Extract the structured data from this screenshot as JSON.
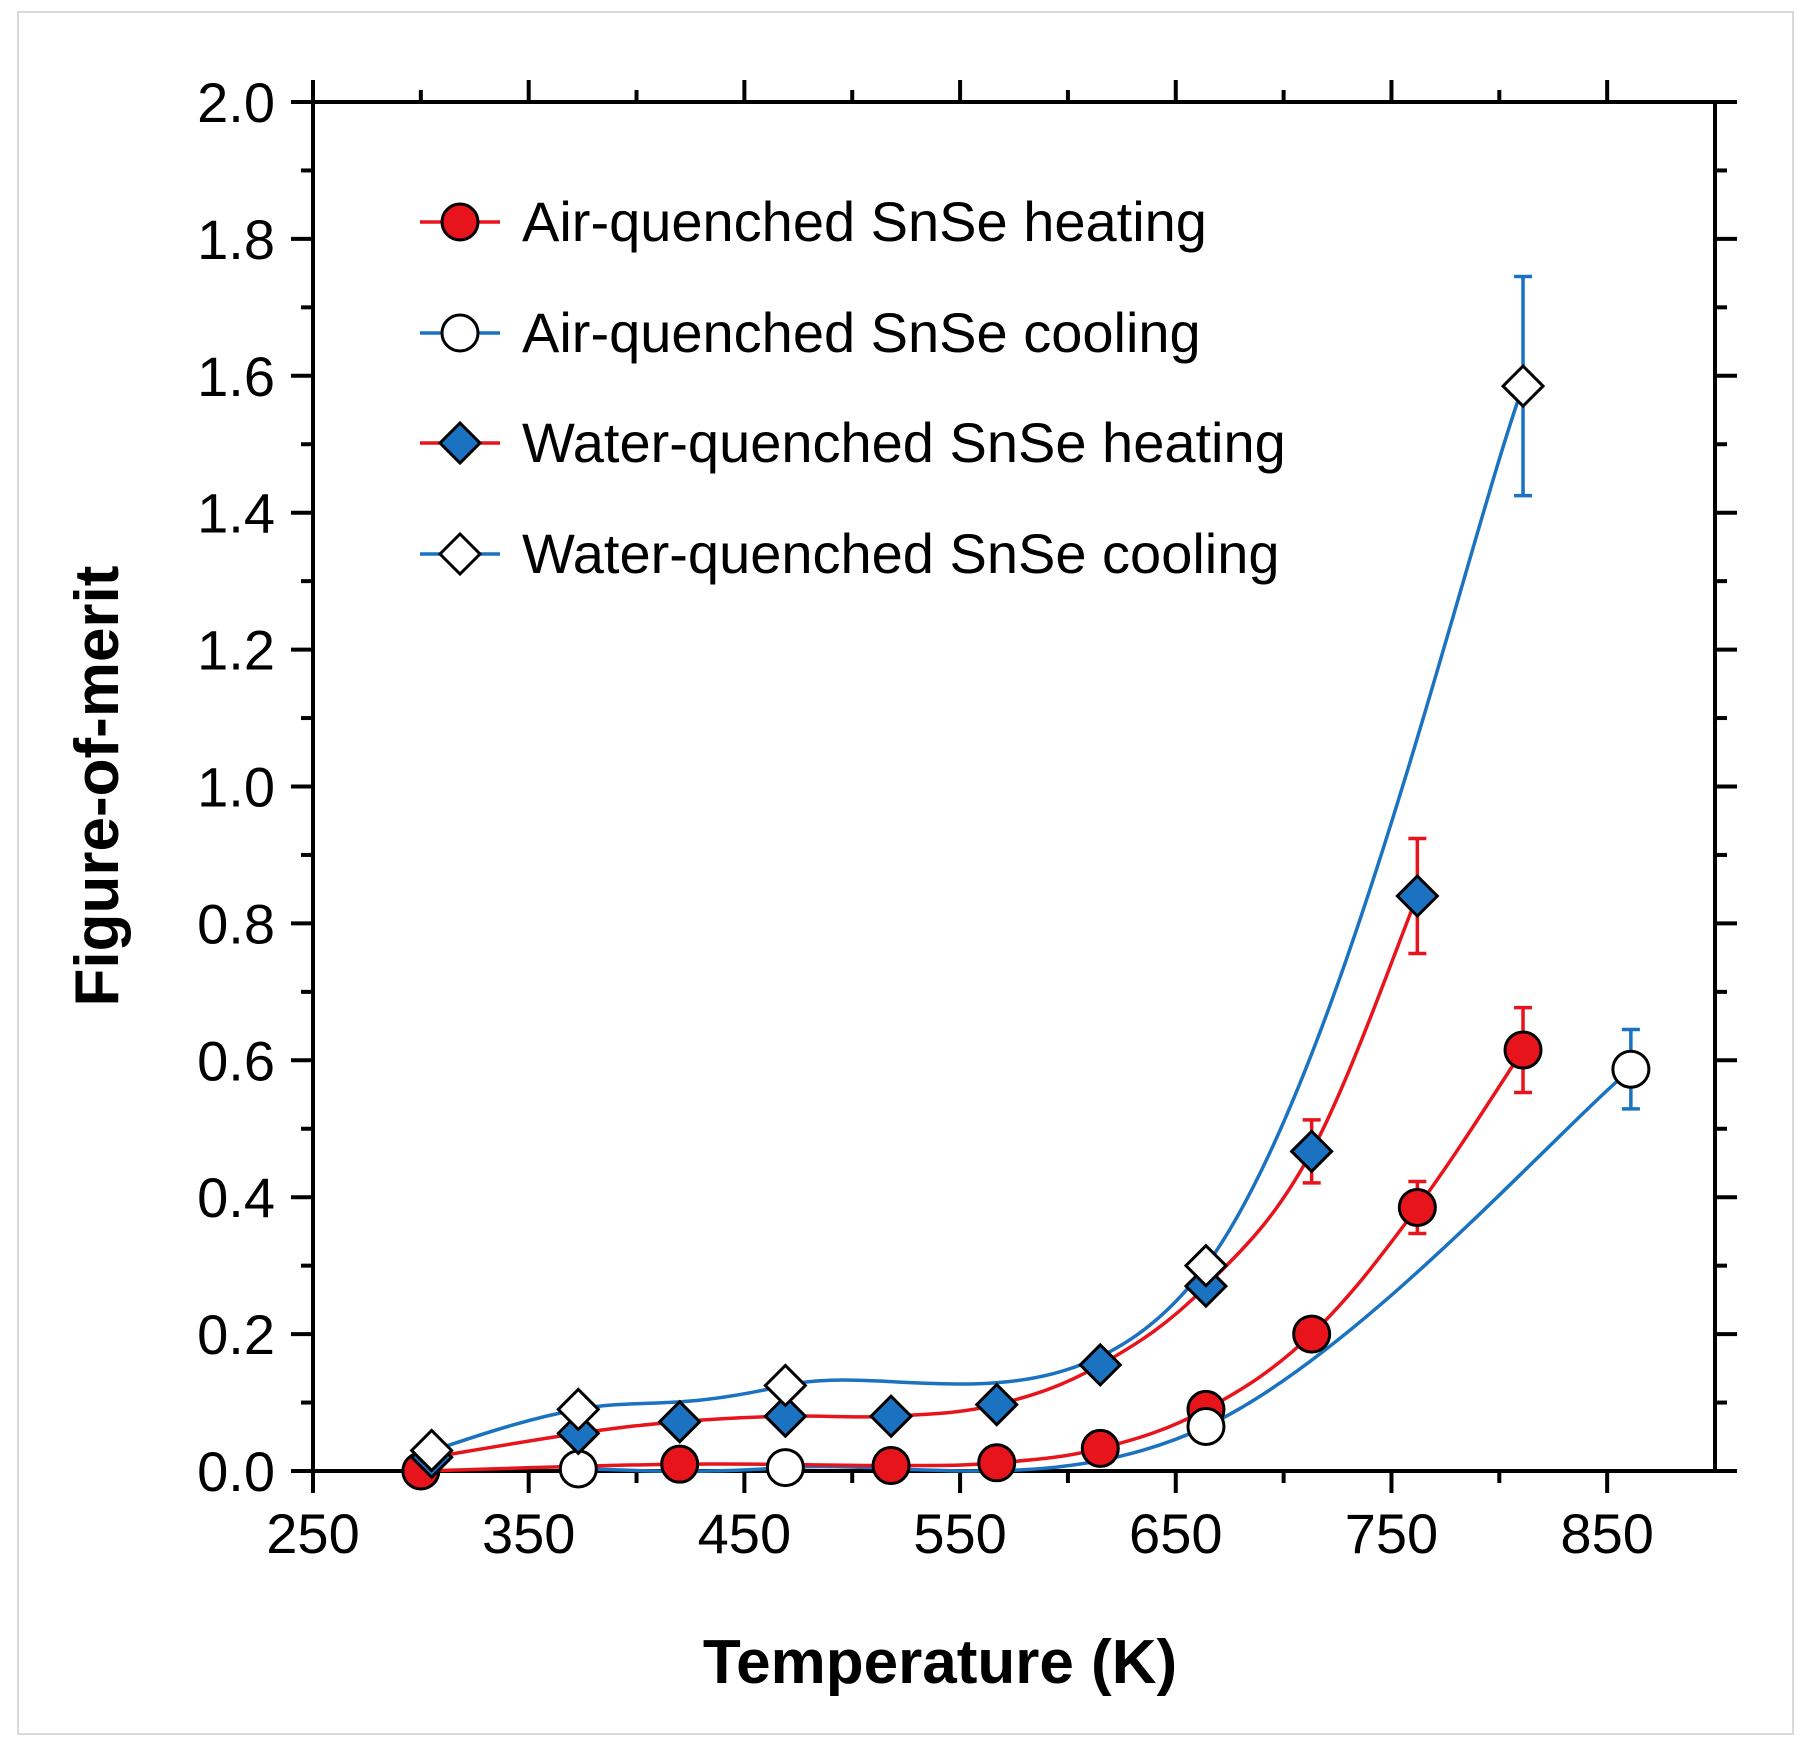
{
  "chart_data": {
    "type": "scatter",
    "title": "",
    "xlabel": "Temperature (K)",
    "ylabel": "Figure-of-merit",
    "xlim": [
      250,
      900
    ],
    "ylim": [
      0,
      2.0
    ],
    "x_ticks": [
      "250",
      "350",
      "450",
      "550",
      "650",
      "750",
      "850"
    ],
    "y_ticks": [
      "0.0",
      "0.2",
      "0.4",
      "0.6",
      "0.8",
      "1.0",
      "1.2",
      "1.4",
      "1.6",
      "1.8",
      "2.0"
    ],
    "legend_position": "top-left",
    "series": [
      {
        "name": "Air-quenched SnSe heating",
        "marker": "circle",
        "marker_fill": "#e8141c",
        "line_color": "#e8141c",
        "points": [
          {
            "x": 300,
            "y": 0.0
          },
          {
            "x": 420,
            "y": 0.01
          },
          {
            "x": 518,
            "y": 0.008
          },
          {
            "x": 567,
            "y": 0.012
          },
          {
            "x": 615,
            "y": 0.033
          },
          {
            "x": 664,
            "y": 0.09
          },
          {
            "x": 713,
            "y": 0.2
          },
          {
            "x": 762,
            "y": 0.385,
            "err": 0.038
          },
          {
            "x": 811,
            "y": 0.615,
            "err": 0.062
          }
        ]
      },
      {
        "name": "Air-quenched SnSe cooling",
        "marker": "circle",
        "marker_fill": "#ffffff",
        "line_color": "#1a72c0",
        "points": [
          {
            "x": 373,
            "y": 0.003
          },
          {
            "x": 469,
            "y": 0.005
          },
          {
            "x": 664,
            "y": 0.065
          },
          {
            "x": 861,
            "y": 0.587,
            "err": 0.058
          }
        ]
      },
      {
        "name": "Water-quenched SnSe heating",
        "marker": "diamond",
        "marker_fill": "#1a72c0",
        "line_color": "#e8141c",
        "points": [
          {
            "x": 305,
            "y": 0.02
          },
          {
            "x": 373,
            "y": 0.055
          },
          {
            "x": 420,
            "y": 0.072
          },
          {
            "x": 469,
            "y": 0.08
          },
          {
            "x": 518,
            "y": 0.08
          },
          {
            "x": 567,
            "y": 0.097
          },
          {
            "x": 615,
            "y": 0.155
          },
          {
            "x": 664,
            "y": 0.27
          },
          {
            "x": 713,
            "y": 0.467,
            "err": 0.046
          },
          {
            "x": 762,
            "y": 0.84,
            "err": 0.084
          }
        ]
      },
      {
        "name": "Water-quenched SnSe cooling",
        "marker": "diamond",
        "marker_fill": "#ffffff",
        "line_color": "#1a72c0",
        "points": [
          {
            "x": 305,
            "y": 0.03
          },
          {
            "x": 373,
            "y": 0.09
          },
          {
            "x": 469,
            "y": 0.125
          },
          {
            "x": 664,
            "y": 0.3
          },
          {
            "x": 811,
            "y": 1.585,
            "err": 0.16
          }
        ]
      }
    ]
  },
  "colors": {
    "red": "#e8141c",
    "blue": "#1a72c0",
    "axis": "#000000",
    "frame": "#d9d9d9"
  }
}
